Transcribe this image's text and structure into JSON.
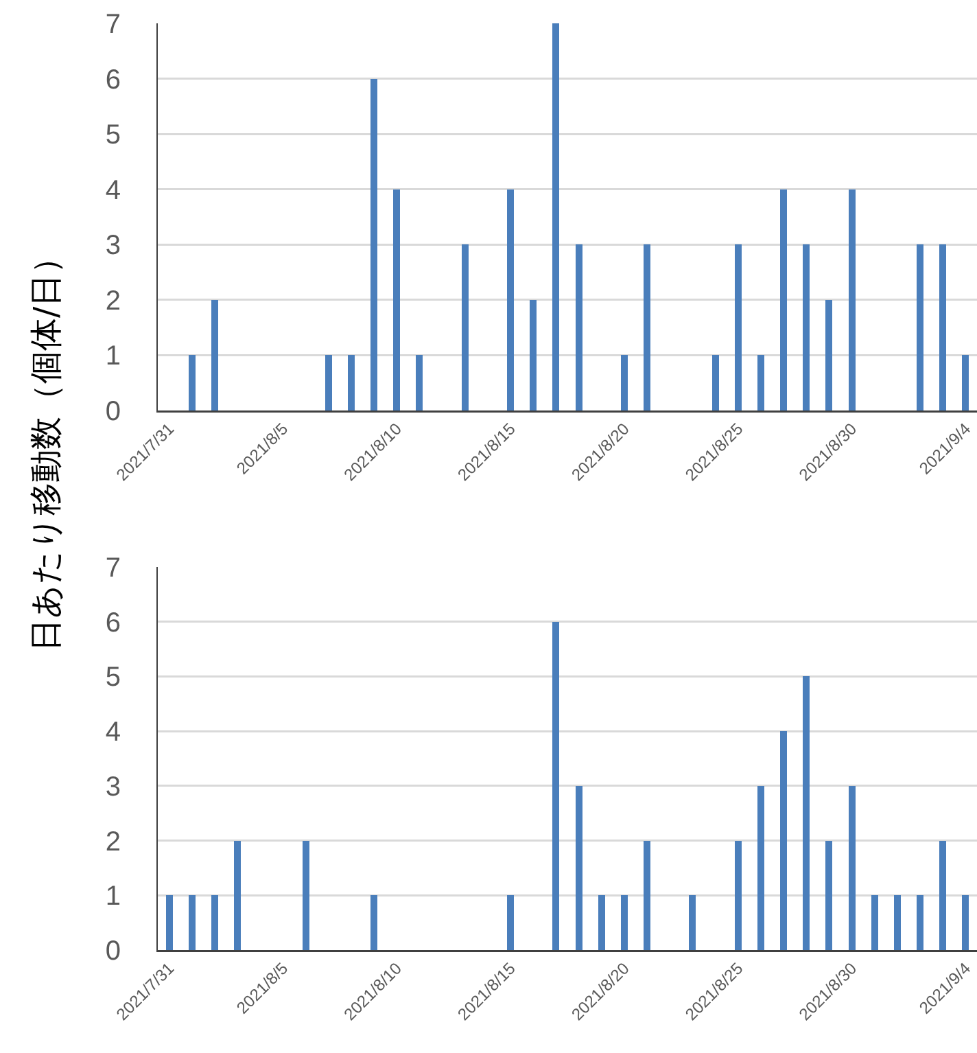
{
  "chart_data": [
    {
      "type": "bar",
      "ylabel": "日あたり移動数（個体/日）",
      "x": [
        "2021-08-01",
        "2021-08-02",
        "2021-08-07",
        "2021-08-08",
        "2021-08-09",
        "2021-08-10",
        "2021-08-11",
        "2021-08-13",
        "2021-08-15",
        "2021-08-16",
        "2021-08-17",
        "2021-08-18",
        "2021-08-20",
        "2021-08-21",
        "2021-08-24",
        "2021-08-25",
        "2021-08-26",
        "2021-08-27",
        "2021-08-28",
        "2021-08-29",
        "2021-08-30",
        "2021-09-02",
        "2021-09-03",
        "2021-09-04"
      ],
      "series": [
        {
          "color": "#4a7ebb",
          "values": [
            1,
            2,
            1,
            1,
            6,
            4,
            1,
            3,
            4,
            2,
            7,
            3,
            1,
            3,
            1,
            3,
            1,
            4,
            3,
            2,
            4,
            3,
            3,
            1
          ]
        }
      ],
      "xlim": [
        "2021-07-30T12:00",
        "2021-09-04T12:00"
      ],
      "xticks": [
        {
          "value": "2021-07-31",
          "label": "2021/7/31"
        },
        {
          "value": "2021-08-05",
          "label": "2021/8/5"
        },
        {
          "value": "2021-08-10",
          "label": "2021/8/10"
        },
        {
          "value": "2021-08-15",
          "label": "2021/8/15"
        },
        {
          "value": "2021-08-20",
          "label": "2021/8/20"
        },
        {
          "value": "2021-08-25",
          "label": "2021/8/25"
        },
        {
          "value": "2021-08-30",
          "label": "2021/8/30"
        },
        {
          "value": "2021-09-04",
          "label": "2021/9/4"
        }
      ],
      "ylim": [
        0,
        7
      ],
      "yticks": [
        0,
        1,
        2,
        3,
        4,
        5,
        6,
        7
      ],
      "grid": "y",
      "legend": false
    },
    {
      "type": "bar",
      "x": [
        "2021-07-31",
        "2021-08-01",
        "2021-08-02",
        "2021-08-03",
        "2021-08-06",
        "2021-08-09",
        "2021-08-15",
        "2021-08-17",
        "2021-08-18",
        "2021-08-19",
        "2021-08-20",
        "2021-08-21",
        "2021-08-23",
        "2021-08-25",
        "2021-08-26",
        "2021-08-27",
        "2021-08-28",
        "2021-08-29",
        "2021-08-30",
        "2021-08-31",
        "2021-09-01",
        "2021-09-02",
        "2021-09-03",
        "2021-09-04"
      ],
      "series": [
        {
          "color": "#4a7ebb",
          "values": [
            1,
            1,
            1,
            2,
            2,
            1,
            1,
            6,
            3,
            1,
            1,
            2,
            1,
            2,
            3,
            4,
            5,
            2,
            3,
            1,
            1,
            1,
            2,
            1
          ]
        }
      ],
      "xlim": [
        "2021-07-30T12:00",
        "2021-09-04T12:00"
      ],
      "xticks": [
        {
          "value": "2021-07-31",
          "label": "2021/7/31"
        },
        {
          "value": "2021-08-05",
          "label": "2021/8/5"
        },
        {
          "value": "2021-08-10",
          "label": "2021/8/10"
        },
        {
          "value": "2021-08-15",
          "label": "2021/8/15"
        },
        {
          "value": "2021-08-20",
          "label": "2021/8/20"
        },
        {
          "value": "2021-08-25",
          "label": "2021/8/25"
        },
        {
          "value": "2021-08-30",
          "label": "2021/8/30"
        },
        {
          "value": "2021-09-04",
          "label": "2021/9/4"
        }
      ],
      "ylim": [
        0,
        7
      ],
      "yticks": [
        0,
        1,
        2,
        3,
        4,
        5,
        6,
        7
      ],
      "grid": "y",
      "legend": false
    }
  ]
}
